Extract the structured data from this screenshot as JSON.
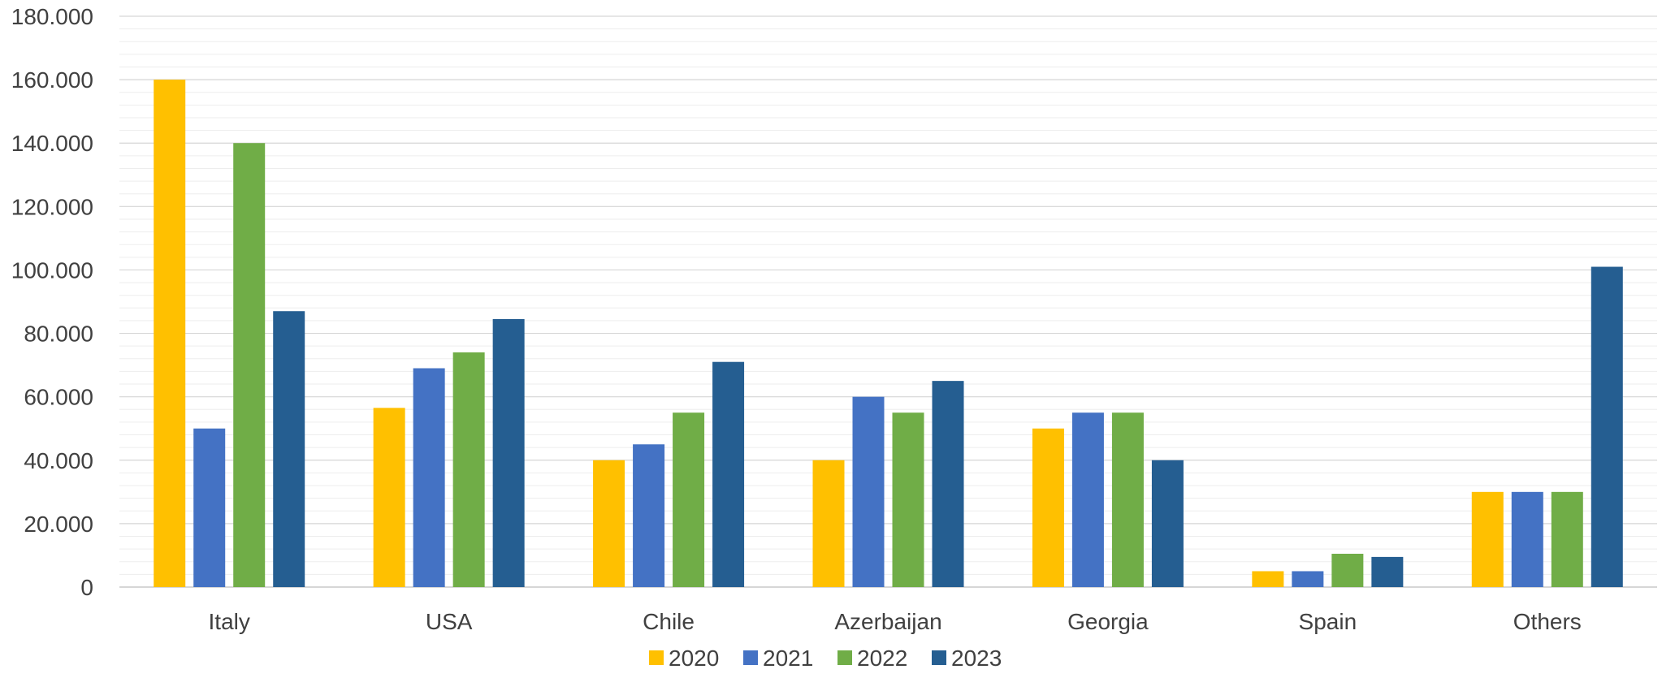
{
  "chart_data": {
    "type": "bar",
    "title": "",
    "xlabel": "",
    "ylabel": "",
    "categories": [
      "Italy",
      "USA",
      "Chile",
      "Azerbaijan",
      "Georgia",
      "Spain",
      "Others"
    ],
    "series": [
      {
        "name": "2020",
        "color": "#FFC000",
        "values": [
          160000,
          56500,
          40000,
          40000,
          50000,
          5000,
          30000
        ]
      },
      {
        "name": "2021",
        "color": "#4472C4",
        "values": [
          50000,
          69000,
          45000,
          60000,
          55000,
          5000,
          30000
        ]
      },
      {
        "name": "2022",
        "color": "#70AD47",
        "values": [
          140000,
          74000,
          55000,
          55000,
          55000,
          10500,
          30000
        ]
      },
      {
        "name": "2023",
        "color": "#255E91",
        "values": [
          87000,
          84500,
          71000,
          65000,
          40000,
          9500,
          101000
        ]
      }
    ],
    "ylim": [
      0,
      180000
    ],
    "major_ticks": [
      "0",
      "20.000",
      "40.000",
      "60.000",
      "80.000",
      "100.000",
      "120.000",
      "140.000",
      "160.000",
      "180.000"
    ],
    "major_tick_values": [
      0,
      20000,
      40000,
      60000,
      80000,
      100000,
      120000,
      140000,
      160000,
      180000
    ],
    "minor_tick_step": 4000,
    "grid": true,
    "legend_position": "bottom"
  }
}
